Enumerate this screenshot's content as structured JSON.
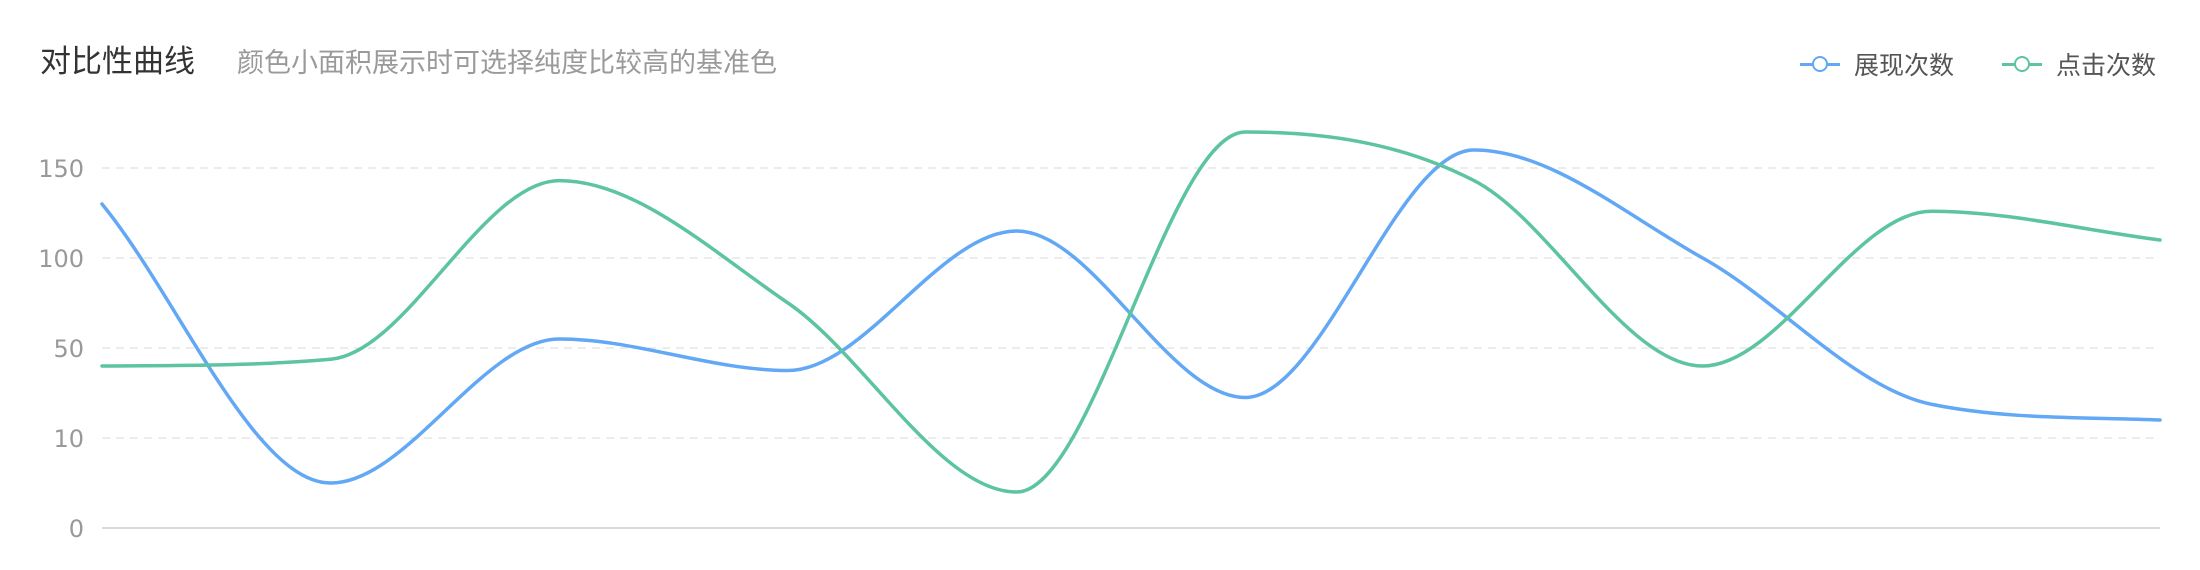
{
  "header": {
    "title": "对比性曲线",
    "subtitle": "颜色小面积展示时可选择纯度比较高的基准色"
  },
  "chart_data": {
    "type": "line",
    "smooth": true,
    "title": "对比性曲线",
    "subtitle": "颜色小面积展示时可选择纯度比较高的基准色",
    "xlabel": "",
    "ylabel": "",
    "y_ticks": [
      0,
      10,
      50,
      100,
      150
    ],
    "grid": true,
    "legend_position": "top-right",
    "x": [
      0,
      1,
      2,
      3,
      4,
      5,
      6,
      7,
      8,
      9
    ],
    "series": [
      {
        "name": "展现次数",
        "color": "#62a8f5",
        "values": [
          130,
          5,
          55,
          40,
          115,
          28,
          160,
          100,
          25,
          18
        ]
      },
      {
        "name": "点击次数",
        "color": "#5cc4a0",
        "values": [
          42,
          45,
          143,
          75,
          4,
          170,
          143,
          42,
          126,
          110
        ]
      }
    ]
  }
}
